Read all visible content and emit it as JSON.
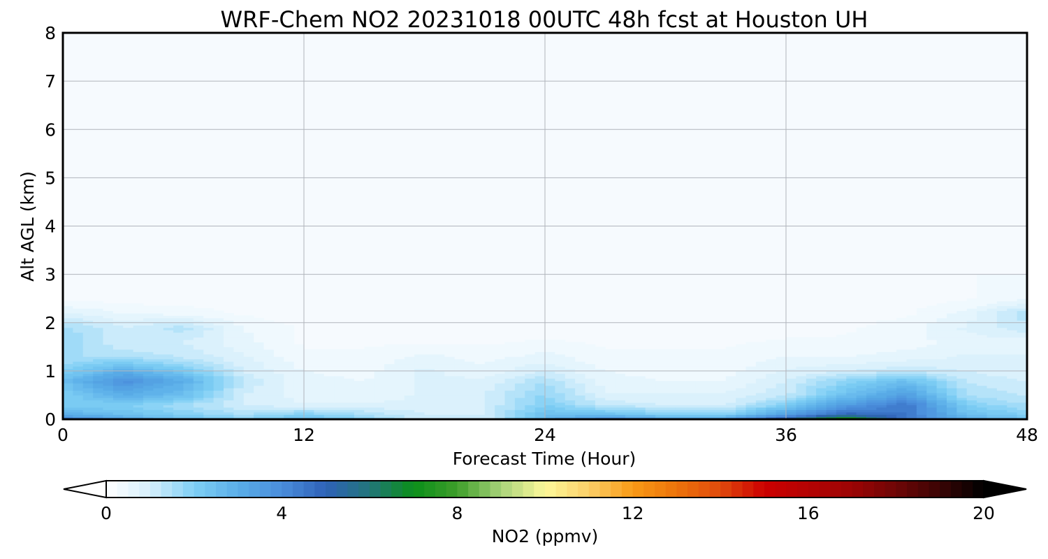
{
  "chart_data": {
    "type": "heatmap",
    "title": "WRF-Chem NO2  20231018 00UTC 48h fcst at Houston UH",
    "xlabel": "Forecast Time (Hour)",
    "ylabel": "Alt AGL (km)",
    "xlim": [
      0,
      48
    ],
    "ylim": [
      0,
      8
    ],
    "xticks": [
      "0",
      "12",
      "24",
      "36",
      "48"
    ],
    "yticks": [
      "0",
      "1",
      "2",
      "3",
      "4",
      "5",
      "6",
      "7",
      "8"
    ],
    "grid": true,
    "x": [
      0,
      3,
      6,
      9,
      12,
      15,
      18,
      21,
      24,
      27,
      30,
      33,
      36,
      39,
      42,
      45,
      48
    ],
    "y": [
      0,
      0.1,
      0.3,
      0.5,
      0.8,
      1.0,
      1.3,
      1.6,
      1.9,
      2.2,
      2.5,
      8
    ],
    "z": [
      [
        4.5,
        3.5,
        2.5,
        2.0,
        2.5,
        2.0,
        1.0,
        1.0,
        3.0,
        4.0,
        3.5,
        3.5,
        5.5,
        8.0,
        4.5,
        3.0,
        2.5
      ],
      [
        3.0,
        2.5,
        2.0,
        1.5,
        2.0,
        1.5,
        1.0,
        1.0,
        2.5,
        2.5,
        2.0,
        2.0,
        3.5,
        5.0,
        4.5,
        2.5,
        2.0
      ],
      [
        2.0,
        2.0,
        1.5,
        1.0,
        0.8,
        0.8,
        0.8,
        1.0,
        2.0,
        1.2,
        1.0,
        1.0,
        2.0,
        3.5,
        4.5,
        2.0,
        1.5
      ],
      [
        2.0,
        3.0,
        2.5,
        1.0,
        0.6,
        0.6,
        0.8,
        1.0,
        1.8,
        0.8,
        0.8,
        0.8,
        1.2,
        2.5,
        3.5,
        1.5,
        1.2
      ],
      [
        2.5,
        3.9,
        3.0,
        1.2,
        0.6,
        0.5,
        0.8,
        0.8,
        1.5,
        0.6,
        0.5,
        0.5,
        1.0,
        1.8,
        2.5,
        1.2,
        1.0
      ],
      [
        2.0,
        3.0,
        2.2,
        1.0,
        0.5,
        0.4,
        0.8,
        0.6,
        1.0,
        0.5,
        0.4,
        0.4,
        0.8,
        1.0,
        1.2,
        1.0,
        0.8
      ],
      [
        1.5,
        1.5,
        1.2,
        0.8,
        0.3,
        0.3,
        0.6,
        0.4,
        0.6,
        0.3,
        0.3,
        0.3,
        0.5,
        0.5,
        0.6,
        0.8,
        0.8
      ],
      [
        1.8,
        1.0,
        1.0,
        0.6,
        0.2,
        0.2,
        0.2,
        0.2,
        0.3,
        0.2,
        0.2,
        0.2,
        0.3,
        0.3,
        0.4,
        0.6,
        0.6
      ],
      [
        1.6,
        1.0,
        1.4,
        0.5,
        0.2,
        0.1,
        0.1,
        0.1,
        0.1,
        0.1,
        0.1,
        0.1,
        0.1,
        0.2,
        0.4,
        0.8,
        1.2
      ],
      [
        0.8,
        0.5,
        0.4,
        0.2,
        0.1,
        0.1,
        0.1,
        0.1,
        0.1,
        0.1,
        0.1,
        0.1,
        0.1,
        0.1,
        0.2,
        0.6,
        1.4
      ],
      [
        0.2,
        0.1,
        0.1,
        0.1,
        0.1,
        0.1,
        0.1,
        0.1,
        0.1,
        0.1,
        0.1,
        0.1,
        0.1,
        0.1,
        0.1,
        0.2,
        0.5
      ],
      [
        0.1,
        0.1,
        0.1,
        0.1,
        0.1,
        0.1,
        0.1,
        0.1,
        0.1,
        0.1,
        0.1,
        0.1,
        0.1,
        0.1,
        0.1,
        0.1,
        0.1
      ]
    ],
    "colorbar": {
      "label": "NO2  (ppmv)",
      "range": [
        0,
        20
      ],
      "ticks": [
        "0",
        "4",
        "8",
        "12",
        "16",
        "20"
      ],
      "extend": "both",
      "min_color": "#ffffff",
      "max_color": "#000000"
    },
    "colormap": [
      [
        0,
        "#ffffff"
      ],
      [
        1,
        "#d6effc"
      ],
      [
        2,
        "#7fcff5"
      ],
      [
        3,
        "#5aaee8"
      ],
      [
        4,
        "#4a8ddb"
      ],
      [
        5,
        "#2f62b8"
      ],
      [
        6,
        "#22757a"
      ],
      [
        7,
        "#0b8f1a"
      ],
      [
        8,
        "#3e9e2a"
      ],
      [
        9,
        "#a8d27a"
      ],
      [
        10,
        "#fdf89a"
      ],
      [
        11,
        "#fbcf68"
      ],
      [
        12,
        "#f99a16"
      ],
      [
        13,
        "#ec730b"
      ],
      [
        14,
        "#e04a0c"
      ],
      [
        15,
        "#cc0000"
      ],
      [
        16,
        "#b40303"
      ],
      [
        17,
        "#9c0404"
      ],
      [
        18,
        "#6e0606"
      ],
      [
        19,
        "#3a0404"
      ],
      [
        20,
        "#000000"
      ]
    ]
  }
}
